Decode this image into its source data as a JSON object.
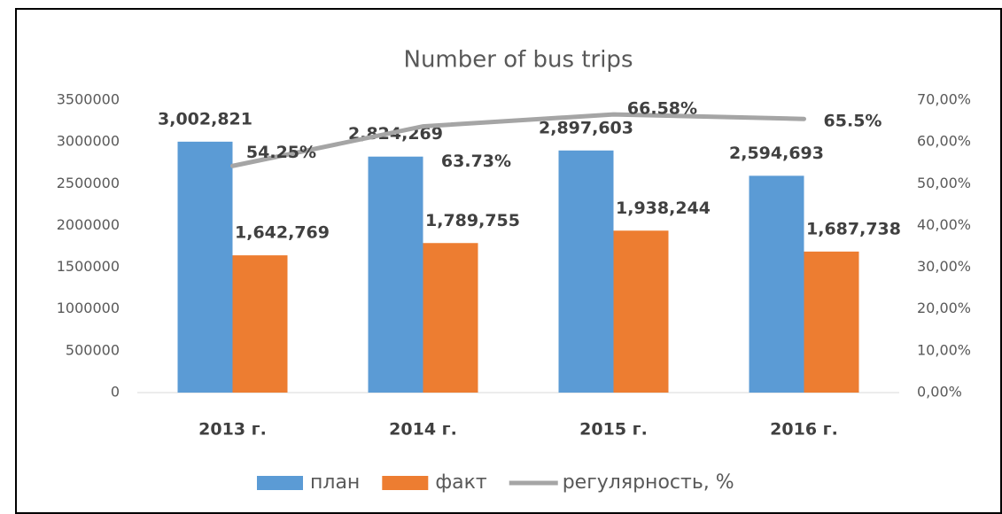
{
  "chart_data": {
    "type": "bar-line",
    "title": "Number of bus trips",
    "categories": [
      "2013 г.",
      "2014 г.",
      "2015 г.",
      "2016 г."
    ],
    "series": [
      {
        "name": "план",
        "color": "#5b9bd5",
        "type": "bar",
        "values": [
          3002821,
          2824269,
          2897603,
          2594693
        ],
        "value_labels": [
          "3,002,821",
          "2,824,269",
          "2,897,603",
          "2,594,693"
        ]
      },
      {
        "name": "факт",
        "color": "#ed7d31",
        "type": "bar",
        "values": [
          1642769,
          1789755,
          1938244,
          1687738
        ],
        "value_labels": [
          "1,642,769",
          "1,789,755",
          "1,938,244",
          "1,687,738"
        ]
      },
      {
        "name": "регулярность, %",
        "color": "#a5a5a5",
        "type": "line",
        "axis": "y2",
        "values": [
          54.25,
          63.73,
          66.58,
          65.5
        ],
        "value_labels": [
          "54.25%",
          "63.73%",
          "66.58%",
          "65.5%"
        ]
      }
    ],
    "ylim": [
      0,
      3500000
    ],
    "yticks": [
      0,
      500000,
      1000000,
      1500000,
      2000000,
      2500000,
      3000000,
      3500000
    ],
    "y2lim": [
      0,
      70
    ],
    "y2ticks": [
      {
        "value": 0,
        "label": "0,00%"
      },
      {
        "value": 10,
        "label": "10,00%"
      },
      {
        "value": 20,
        "label": "20,00%"
      },
      {
        "value": 30,
        "label": "30,00%"
      },
      {
        "value": 40,
        "label": "40,00%"
      },
      {
        "value": 50,
        "label": "50,00%"
      },
      {
        "value": 60,
        "label": "60,00%"
      },
      {
        "value": 70,
        "label": "70,00%"
      }
    ],
    "grid": false,
    "legend": "bottom"
  }
}
